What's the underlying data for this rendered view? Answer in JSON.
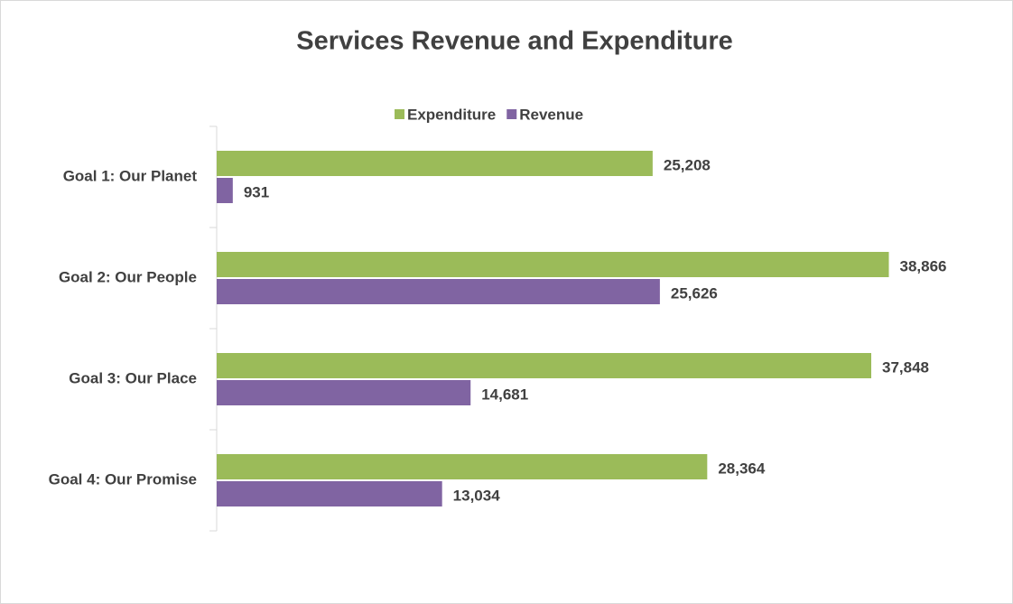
{
  "chart_data": {
    "type": "bar",
    "orientation": "horizontal",
    "title": "Services Revenue and Expenditure",
    "categories": [
      "Goal 1: Our Planet",
      "Goal 2: Our People",
      "Goal 3: Our Place",
      "Goal 4: Our Promise"
    ],
    "series": [
      {
        "name": "Expenditure",
        "color": "#9bbb59",
        "values": [
          25208,
          38866,
          37848,
          28364
        ],
        "value_labels": [
          "25,208",
          "38,866",
          "37,848",
          "28,364"
        ]
      },
      {
        "name": "Revenue",
        "color": "#8064a2",
        "values": [
          931,
          25626,
          14681,
          13034
        ],
        "value_labels": [
          "931",
          "25,626",
          "14,681",
          "13,034"
        ]
      }
    ],
    "xlim": [
      0,
      45000
    ],
    "legend": "top"
  }
}
